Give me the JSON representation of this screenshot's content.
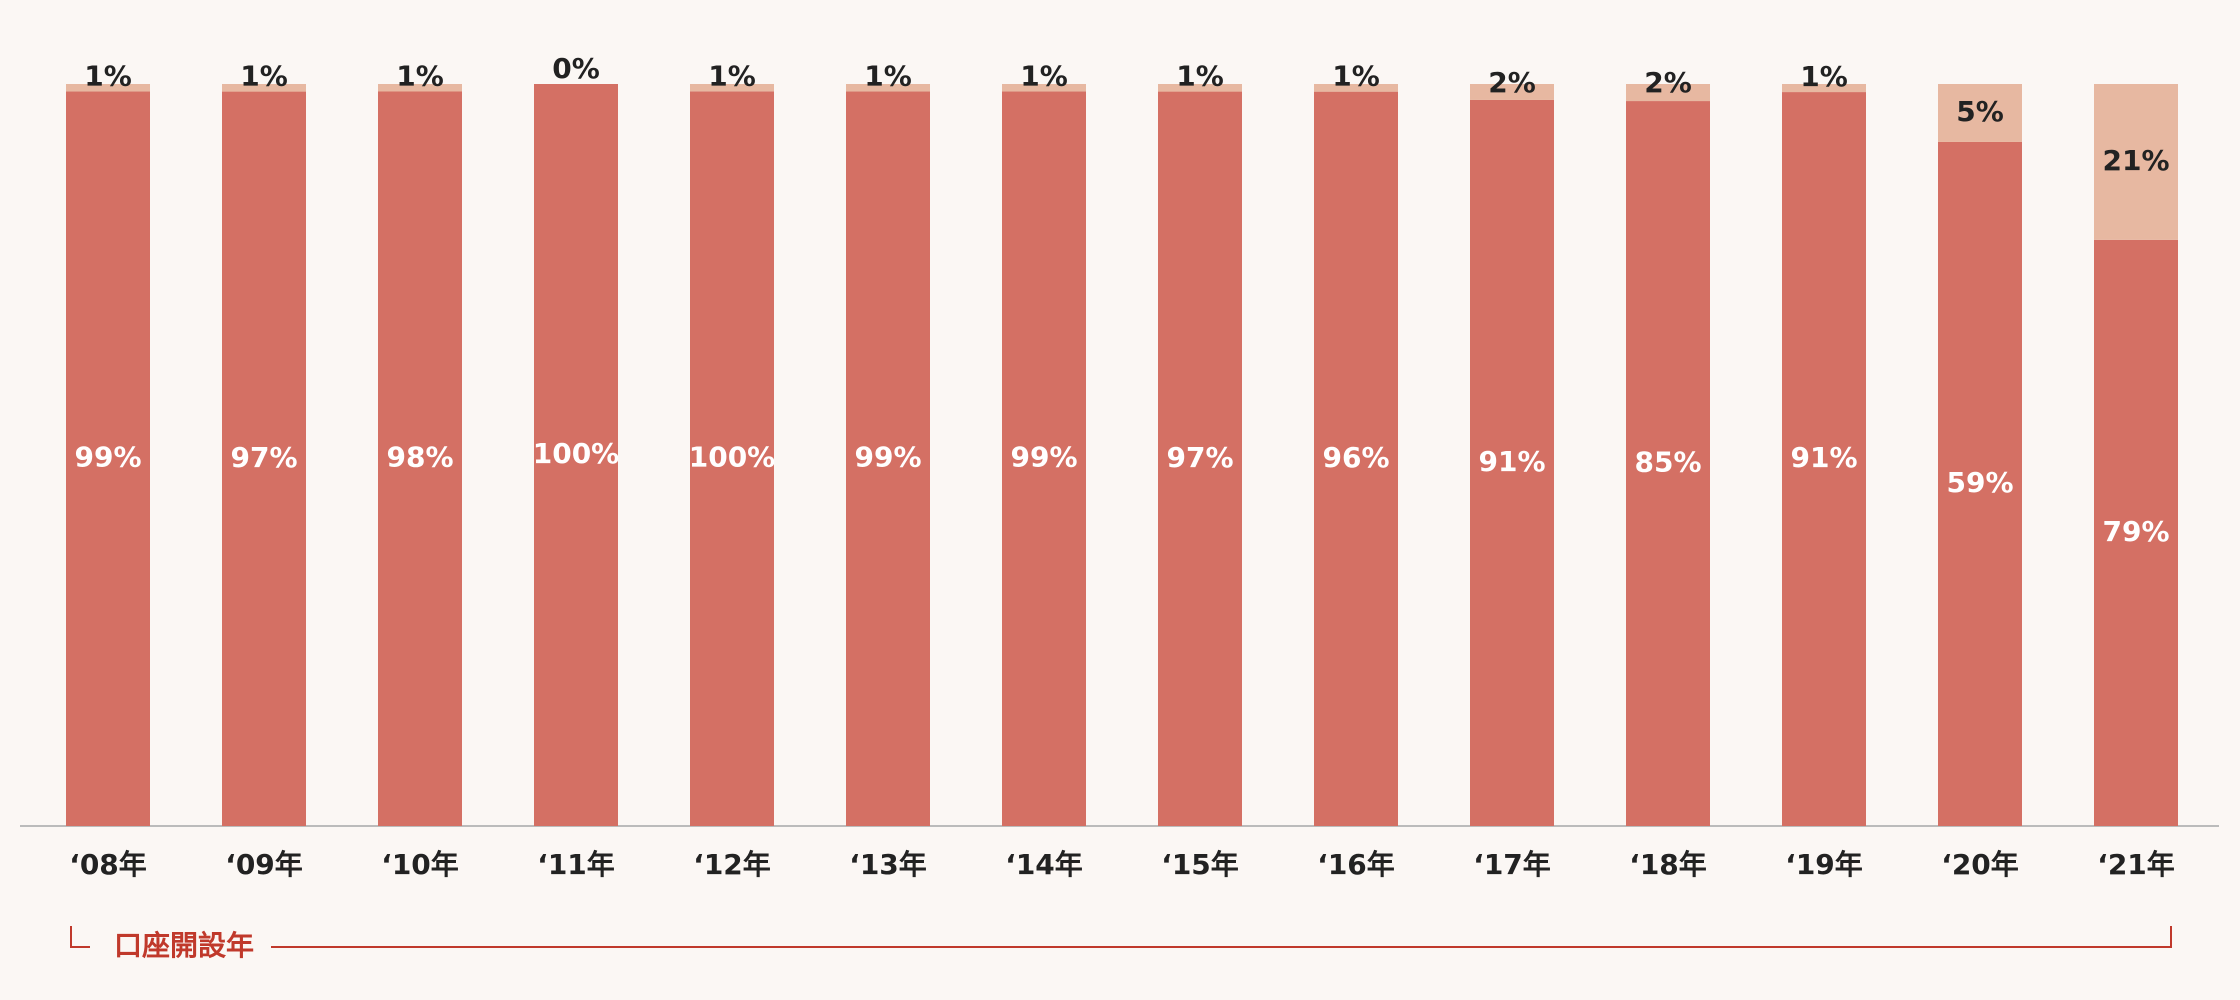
{
  "chart_data": {
    "type": "bar",
    "stacked": "percent",
    "categories": [
      "‘08年",
      "‘09年",
      "‘10年",
      "‘11年",
      "‘12年",
      "‘13年",
      "‘14年",
      "‘15年",
      "‘16年",
      "‘17年",
      "‘18年",
      "‘19年",
      "‘20年",
      "‘21年"
    ],
    "series": [
      {
        "color": "#d47064",
        "label_color": "#ffffff",
        "values": [
          99,
          97,
          98,
          100,
          100,
          99,
          99,
          97,
          96,
          91,
          85,
          91,
          59,
          79
        ],
        "value_labels": [
          "99%",
          "97%",
          "98%",
          "100%",
          "100%",
          "99%",
          "99%",
          "97%",
          "96%",
          "91%",
          "85%",
          "91%",
          "59%",
          "79%"
        ]
      },
      {
        "color": "#e7b8a1",
        "label_color": "#222222",
        "values": [
          1,
          1,
          1,
          0,
          1,
          1,
          1,
          1,
          1,
          2,
          2,
          1,
          5,
          21
        ],
        "value_labels": [
          "1%",
          "1%",
          "1%",
          "0%",
          "1%",
          "1%",
          "1%",
          "1%",
          "1%",
          "2%",
          "2%",
          "1%",
          "5%",
          "21%"
        ]
      }
    ],
    "xlabel": "口座開設年",
    "xlabel_color": "#c0392b"
  }
}
